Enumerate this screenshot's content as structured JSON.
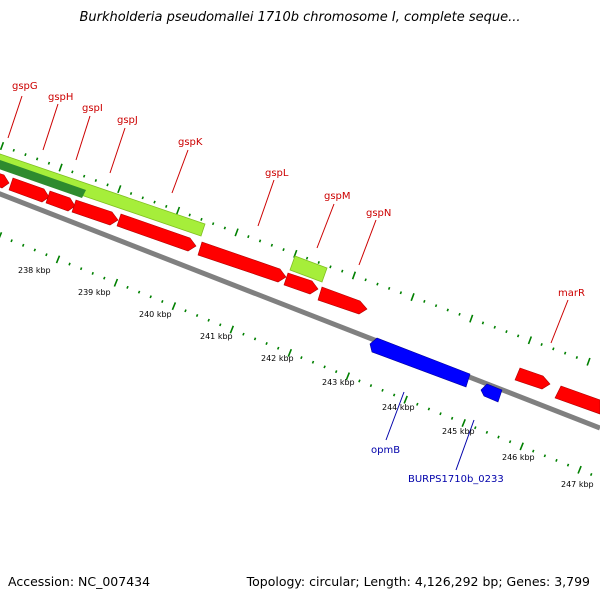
{
  "header": {
    "title": "Burkholderia pseudomallei 1710b chromosome I, complete seque..."
  },
  "footer": {
    "accession": "Accession: NC_007434",
    "summary": "Topology: circular; Length: 4,126,292 bp; Genes: 3,799"
  },
  "colors": {
    "gene_forward": "#ff0000",
    "gene_reverse": "#0000ff",
    "feature_light": "#a6ee3a",
    "feature_dark": "#2e8b2e",
    "backbone": "#808080",
    "ticks": "#008000",
    "forward_label": "#cc0000",
    "reverse_label": "#0000aa"
  },
  "scale": {
    "labels": [
      {
        "id": "238",
        "text": "238 kbp"
      },
      {
        "id": "239",
        "text": "239 kbp"
      },
      {
        "id": "240",
        "text": "240 kbp"
      },
      {
        "id": "241",
        "text": "241 kbp"
      },
      {
        "id": "242",
        "text": "242 kbp"
      },
      {
        "id": "243",
        "text": "243 kbp"
      },
      {
        "id": "244",
        "text": "244 kbp"
      },
      {
        "id": "245",
        "text": "245 kbp"
      },
      {
        "id": "246",
        "text": "246 kbp"
      },
      {
        "id": "247",
        "text": "247 kbp"
      }
    ]
  },
  "genes": {
    "forward": [
      {
        "id": "gspG",
        "label": "gspG"
      },
      {
        "id": "gspH",
        "label": "gspH"
      },
      {
        "id": "gspI",
        "label": "gspI"
      },
      {
        "id": "gspJ",
        "label": "gspJ"
      },
      {
        "id": "gspK",
        "label": "gspK"
      },
      {
        "id": "gspL",
        "label": "gspL"
      },
      {
        "id": "gspM",
        "label": "gspM"
      },
      {
        "id": "gspN",
        "label": "gspN"
      },
      {
        "id": "marR",
        "label": "marR"
      }
    ],
    "reverse": [
      {
        "id": "opmB",
        "label": "opmB"
      },
      {
        "id": "burps",
        "label": "BURPS1710b_0233"
      }
    ]
  }
}
